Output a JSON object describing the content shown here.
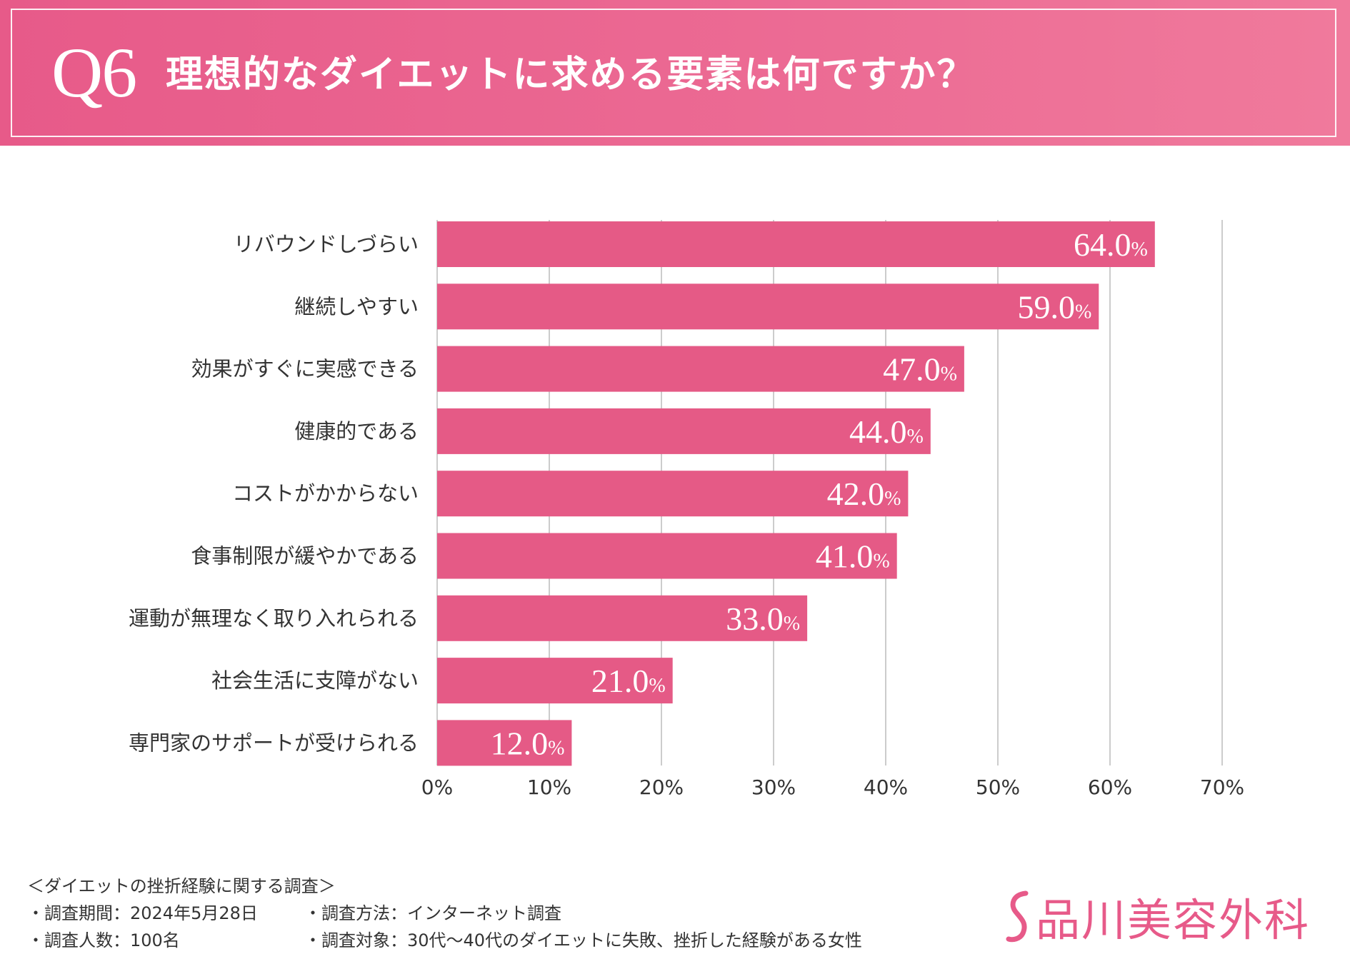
{
  "header": {
    "q_label": "Q6",
    "title": "理想的なダイエットに求める要素は何ですか？"
  },
  "colors": {
    "accent": "#e75a89",
    "bar": "#e55a86",
    "grid": "#cccccc"
  },
  "chart_data": {
    "type": "bar",
    "orientation": "horizontal",
    "title": "理想的なダイエットに求める要素は何ですか？",
    "categories": [
      "リバウンドしづらい",
      "継続しやすい",
      "効果がすぐに実感できる",
      "健康的である",
      "コストがかからない",
      "食事制限が緩やかである",
      "運動が無理なく取り入れられる",
      "社会生活に支障がない",
      "専門家のサポートが受けられる"
    ],
    "values": [
      64.0,
      59.0,
      47.0,
      44.0,
      42.0,
      41.0,
      33.0,
      21.0,
      12.0
    ],
    "value_labels": [
      "64.0",
      "59.0",
      "47.0",
      "44.0",
      "42.0",
      "41.0",
      "33.0",
      "21.0",
      "12.0"
    ],
    "value_unit": "%",
    "xlim": [
      0,
      70
    ],
    "xticks": [
      0,
      10,
      20,
      30,
      40,
      50,
      60,
      70
    ],
    "xtick_labels": [
      "0%",
      "10%",
      "20%",
      "30%",
      "40%",
      "50%",
      "60%",
      "70%"
    ],
    "grid": true,
    "xlabel": "",
    "ylabel": ""
  },
  "footer": {
    "survey_title": "＜ダイエットの挫折経験に関する調査＞",
    "period": "・調査期間：2024年5月28日",
    "method": "・調査方法：インターネット調査",
    "count": "・調査人数：100名",
    "target": "・調査対象：30代〜40代のダイエットに失敗、挫折した経験がある女性"
  },
  "logo": {
    "icon": "s-logo-icon",
    "text": "品川美容外科"
  }
}
